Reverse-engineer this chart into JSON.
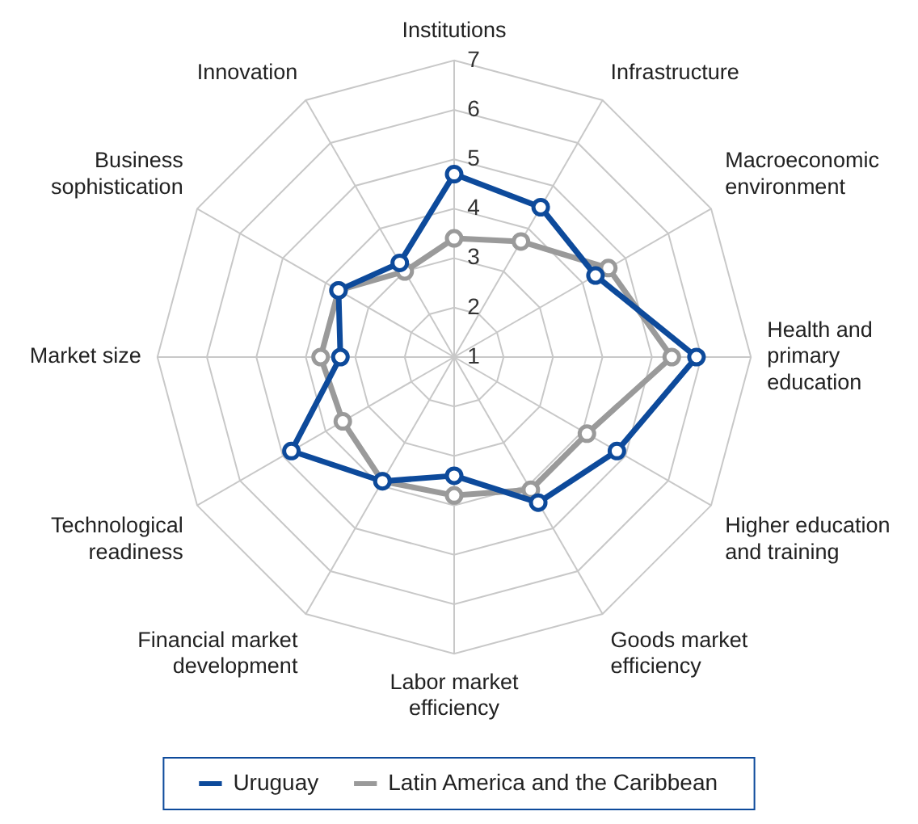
{
  "chart_data": {
    "type": "radar",
    "categories": [
      "Institutions",
      "Infrastructure",
      "Macroeconomic environment",
      "Health and primary education",
      "Higher education and training",
      "Goods market efficiency",
      "Labor market efficiency",
      "Financial market development",
      "Technological readiness",
      "Market size",
      "Business sophistication",
      "Innovation"
    ],
    "series": [
      {
        "name": "Uruguay",
        "color": "#0d4a9b",
        "values": [
          4.7,
          4.5,
          4.3,
          5.9,
          4.8,
          4.4,
          3.4,
          3.9,
          4.8,
          3.3,
          3.7,
          3.2
        ]
      },
      {
        "name": "Latin America and the Caribbean",
        "color": "#9a9a9a",
        "values": [
          3.4,
          3.7,
          4.6,
          5.4,
          4.1,
          4.1,
          3.8,
          3.9,
          3.6,
          3.7,
          3.7,
          3.0
        ]
      }
    ],
    "ylim": [
      1,
      7
    ],
    "yticks": [
      1,
      2,
      3,
      4,
      5,
      6,
      7
    ],
    "grid": true,
    "legend": "bottom",
    "marker": "circle",
    "line_style": "solid"
  }
}
